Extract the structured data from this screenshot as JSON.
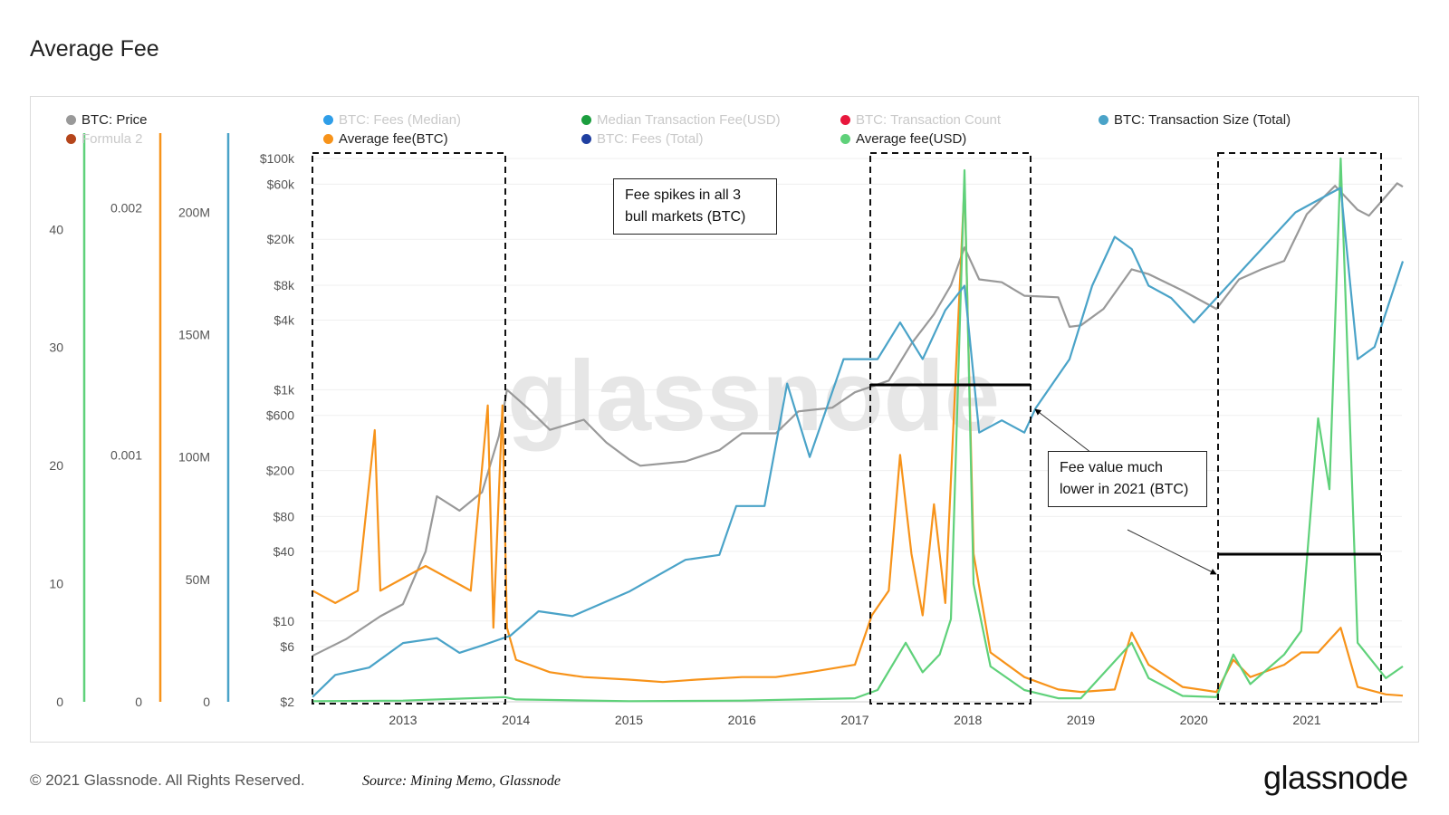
{
  "title": "Average Fee",
  "footer": {
    "copyright": "© 2021 Glassnode. All Rights Reserved.",
    "source": "Source: Mining Memo, Glassnode",
    "brand": "glassnode"
  },
  "watermark": "glassnode",
  "legend": [
    {
      "label": "BTC: Price",
      "color": "#999999",
      "active": true
    },
    {
      "label": "Formula 2",
      "color": "#b5451b",
      "active": false
    },
    {
      "label": "BTC: Fees (Median)",
      "color": "#2f9ee8",
      "active": false
    },
    {
      "label": "Average fee(BTC)",
      "color": "#f7931a",
      "active": true
    },
    {
      "label": "Median Transaction Fee(USD)",
      "color": "#1b9e3e",
      "active": false
    },
    {
      "label": "BTC: Fees (Total)",
      "color": "#1f3fa0",
      "active": false
    },
    {
      "label": "BTC: Transaction Count",
      "color": "#e8173c",
      "active": false
    },
    {
      "label": "Average fee(USD)",
      "color": "#5fd17a",
      "active": true
    },
    {
      "label": "BTC: Transaction Size (Total)",
      "color": "#4aa3c8",
      "active": true
    }
  ],
  "annotations": {
    "note1": "Fee spikes in all 3 bull markets (BTC)",
    "note2": "Fee value much lower in 2021 (BTC)"
  },
  "chart_data": {
    "type": "line",
    "x_ticks": [
      "2013",
      "2014",
      "2015",
      "2016",
      "2017",
      "2018",
      "2019",
      "2020",
      "2021"
    ],
    "axes": {
      "avg_fee_usd": {
        "ticks": [
          "0",
          "10",
          "20",
          "30",
          "40"
        ],
        "color": "#5fd17a"
      },
      "avg_fee_btc": {
        "ticks": [
          "0",
          "0.001",
          "0.002"
        ],
        "color": "#f7931a"
      },
      "tx_size": {
        "ticks": [
          "0",
          "50M",
          "100M",
          "150M",
          "200M"
        ],
        "color": "#4aa3c8"
      },
      "price": {
        "scale": "log",
        "ticks": [
          "$2",
          "$6",
          "$10",
          "$40",
          "$80",
          "$200",
          "$600",
          "$1k",
          "$4k",
          "$8k",
          "$20k",
          "$60k",
          "$100k"
        ]
      }
    },
    "series": [
      {
        "name": "BTC: Price",
        "color": "#999999",
        "axis": "price",
        "points": [
          [
            2012.2,
            5
          ],
          [
            2012.5,
            7
          ],
          [
            2012.8,
            11
          ],
          [
            2013.0,
            14
          ],
          [
            2013.2,
            40
          ],
          [
            2013.3,
            120
          ],
          [
            2013.5,
            90
          ],
          [
            2013.7,
            130
          ],
          [
            2013.85,
            400
          ],
          [
            2013.92,
            1000
          ],
          [
            2014.1,
            700
          ],
          [
            2014.3,
            450
          ],
          [
            2014.6,
            550
          ],
          [
            2014.8,
            350
          ],
          [
            2015.0,
            250
          ],
          [
            2015.1,
            220
          ],
          [
            2015.5,
            240
          ],
          [
            2015.8,
            300
          ],
          [
            2016.0,
            420
          ],
          [
            2016.3,
            420
          ],
          [
            2016.5,
            650
          ],
          [
            2016.8,
            700
          ],
          [
            2017.0,
            950
          ],
          [
            2017.3,
            1200
          ],
          [
            2017.5,
            2500
          ],
          [
            2017.7,
            4500
          ],
          [
            2017.85,
            8000
          ],
          [
            2017.97,
            17000
          ],
          [
            2018.1,
            9000
          ],
          [
            2018.3,
            8500
          ],
          [
            2018.5,
            6500
          ],
          [
            2018.8,
            6300
          ],
          [
            2018.9,
            3500
          ],
          [
            2019.0,
            3600
          ],
          [
            2019.2,
            5000
          ],
          [
            2019.45,
            11000
          ],
          [
            2019.6,
            10000
          ],
          [
            2019.9,
            7200
          ],
          [
            2020.2,
            5000
          ],
          [
            2020.4,
            9000
          ],
          [
            2020.6,
            11000
          ],
          [
            2020.8,
            13000
          ],
          [
            2021.0,
            33000
          ],
          [
            2021.25,
            58000
          ],
          [
            2021.45,
            36000
          ],
          [
            2021.55,
            32000
          ],
          [
            2021.7,
            47000
          ],
          [
            2021.8,
            61000
          ],
          [
            2021.85,
            57000
          ]
        ]
      },
      {
        "name": "Average fee(BTC)",
        "color": "#f7931a",
        "axis": "avg_fee_btc",
        "points": [
          [
            2012.2,
            0.00045
          ],
          [
            2012.4,
            0.0004
          ],
          [
            2012.6,
            0.00045
          ],
          [
            2012.75,
            0.0011
          ],
          [
            2012.8,
            0.00045
          ],
          [
            2013.0,
            0.0005
          ],
          [
            2013.2,
            0.00055
          ],
          [
            2013.4,
            0.0005
          ],
          [
            2013.6,
            0.00045
          ],
          [
            2013.75,
            0.0012
          ],
          [
            2013.8,
            0.0003
          ],
          [
            2013.88,
            0.0012
          ],
          [
            2013.92,
            0.0003
          ],
          [
            2014.0,
            0.00017
          ],
          [
            2014.3,
            0.00012
          ],
          [
            2014.6,
            0.0001
          ],
          [
            2015.0,
            9e-05
          ],
          [
            2015.3,
            8e-05
          ],
          [
            2015.6,
            9e-05
          ],
          [
            2016.0,
            0.0001
          ],
          [
            2016.3,
            0.0001
          ],
          [
            2016.6,
            0.00012
          ],
          [
            2017.0,
            0.00015
          ],
          [
            2017.15,
            0.00035
          ],
          [
            2017.3,
            0.00045
          ],
          [
            2017.4,
            0.001
          ],
          [
            2017.5,
            0.0006
          ],
          [
            2017.6,
            0.00035
          ],
          [
            2017.7,
            0.0008
          ],
          [
            2017.8,
            0.0004
          ],
          [
            2017.97,
            0.0021
          ],
          [
            2018.05,
            0.0006
          ],
          [
            2018.2,
            0.0002
          ],
          [
            2018.5,
            0.0001
          ],
          [
            2018.8,
            5e-05
          ],
          [
            2019.0,
            4e-05
          ],
          [
            2019.3,
            5e-05
          ],
          [
            2019.45,
            0.00028
          ],
          [
            2019.6,
            0.00015
          ],
          [
            2019.9,
            6e-05
          ],
          [
            2020.2,
            4e-05
          ],
          [
            2020.35,
            0.00017
          ],
          [
            2020.5,
            0.0001
          ],
          [
            2020.8,
            0.00015
          ],
          [
            2020.95,
            0.0002
          ],
          [
            2021.1,
            0.0002
          ],
          [
            2021.3,
            0.0003
          ],
          [
            2021.45,
            6e-05
          ],
          [
            2021.7,
            3e-05
          ],
          [
            2021.85,
            2.5e-05
          ]
        ]
      },
      {
        "name": "Average fee(USD)",
        "color": "#5fd17a",
        "axis": "avg_fee_usd",
        "points": [
          [
            2012.2,
            0.05
          ],
          [
            2013.0,
            0.1
          ],
          [
            2013.9,
            0.4
          ],
          [
            2014.0,
            0.2
          ],
          [
            2015.0,
            0.05
          ],
          [
            2016.0,
            0.1
          ],
          [
            2017.0,
            0.3
          ],
          [
            2017.2,
            1
          ],
          [
            2017.45,
            5
          ],
          [
            2017.6,
            2.5
          ],
          [
            2017.75,
            4
          ],
          [
            2017.85,
            7
          ],
          [
            2017.97,
            45
          ],
          [
            2018.05,
            10
          ],
          [
            2018.2,
            3
          ],
          [
            2018.5,
            1
          ],
          [
            2018.8,
            0.3
          ],
          [
            2019.0,
            0.3
          ],
          [
            2019.45,
            5
          ],
          [
            2019.6,
            2
          ],
          [
            2019.9,
            0.5
          ],
          [
            2020.2,
            0.4
          ],
          [
            2020.35,
            4
          ],
          [
            2020.5,
            1.5
          ],
          [
            2020.8,
            4
          ],
          [
            2020.95,
            6
          ],
          [
            2021.1,
            24
          ],
          [
            2021.2,
            18
          ],
          [
            2021.3,
            46
          ],
          [
            2021.45,
            5
          ],
          [
            2021.7,
            2
          ],
          [
            2021.85,
            3
          ]
        ]
      },
      {
        "name": "BTC: Transaction Size (Total)",
        "color": "#4aa3c8",
        "axis": "tx_size",
        "points": [
          [
            2012.2,
            2
          ],
          [
            2012.4,
            11
          ],
          [
            2012.7,
            14
          ],
          [
            2013.0,
            24
          ],
          [
            2013.3,
            26
          ],
          [
            2013.5,
            20
          ],
          [
            2013.7,
            23
          ],
          [
            2013.95,
            27
          ],
          [
            2014.2,
            37
          ],
          [
            2014.5,
            35
          ],
          [
            2015.0,
            45
          ],
          [
            2015.5,
            58
          ],
          [
            2015.8,
            60
          ],
          [
            2015.95,
            80
          ],
          [
            2016.2,
            80
          ],
          [
            2016.4,
            130
          ],
          [
            2016.6,
            100
          ],
          [
            2016.9,
            140
          ],
          [
            2017.2,
            140
          ],
          [
            2017.4,
            155
          ],
          [
            2017.6,
            140
          ],
          [
            2017.8,
            160
          ],
          [
            2017.97,
            170
          ],
          [
            2018.1,
            110
          ],
          [
            2018.3,
            115
          ],
          [
            2018.5,
            110
          ],
          [
            2018.6,
            120
          ],
          [
            2018.9,
            140
          ],
          [
            2019.1,
            170
          ],
          [
            2019.3,
            190
          ],
          [
            2019.45,
            185
          ],
          [
            2019.6,
            170
          ],
          [
            2019.8,
            165
          ],
          [
            2020.0,
            155
          ],
          [
            2020.2,
            165
          ],
          [
            2020.5,
            180
          ],
          [
            2020.7,
            190
          ],
          [
            2020.9,
            200
          ],
          [
            2021.1,
            205
          ],
          [
            2021.3,
            210
          ],
          [
            2021.45,
            140
          ],
          [
            2021.6,
            145
          ],
          [
            2021.85,
            180
          ]
        ]
      }
    ]
  }
}
